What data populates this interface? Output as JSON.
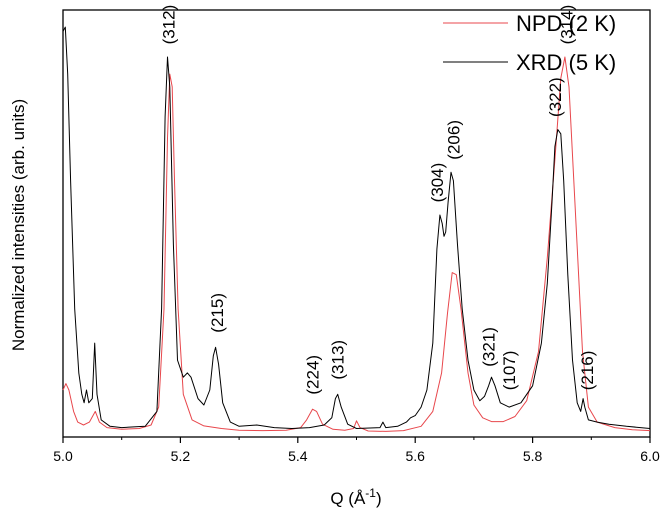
{
  "chart_data": {
    "type": "line",
    "xlabel": "Q (Å",
    "xlabel_sup": "-1",
    "xlabel_close": ")",
    "ylabel": "Normalized intensities (arb. units)",
    "xlim": [
      5.0,
      6.0
    ],
    "ylim": [
      0,
      1
    ],
    "x_ticks": [
      "5.0",
      "5.2",
      "5.4",
      "5.6",
      "5.8",
      "6.0"
    ],
    "x_tick_values": [
      5.0,
      5.2,
      5.4,
      5.6,
      5.8,
      6.0
    ],
    "x_minor_tick_values": [
      5.1,
      5.3,
      5.5,
      5.7,
      5.9
    ],
    "legend_position": "top-right",
    "series": [
      {
        "name": "NPD (2 K)",
        "color": "#e8474c",
        "points": [
          [
            5.0,
            0.11
          ],
          [
            5.005,
            0.125
          ],
          [
            5.01,
            0.11
          ],
          [
            5.018,
            0.06
          ],
          [
            5.025,
            0.035
          ],
          [
            5.035,
            0.028
          ],
          [
            5.045,
            0.035
          ],
          [
            5.055,
            0.06
          ],
          [
            5.062,
            0.035
          ],
          [
            5.075,
            0.022
          ],
          [
            5.1,
            0.018
          ],
          [
            5.13,
            0.02
          ],
          [
            5.15,
            0.028
          ],
          [
            5.163,
            0.07
          ],
          [
            5.172,
            0.3
          ],
          [
            5.178,
            0.7
          ],
          [
            5.182,
            0.85
          ],
          [
            5.186,
            0.82
          ],
          [
            5.19,
            0.6
          ],
          [
            5.196,
            0.3
          ],
          [
            5.205,
            0.1
          ],
          [
            5.22,
            0.04
          ],
          [
            5.24,
            0.026
          ],
          [
            5.27,
            0.02
          ],
          [
            5.3,
            0.016
          ],
          [
            5.34,
            0.015
          ],
          [
            5.38,
            0.016
          ],
          [
            5.405,
            0.022
          ],
          [
            5.415,
            0.04
          ],
          [
            5.425,
            0.065
          ],
          [
            5.432,
            0.06
          ],
          [
            5.442,
            0.03
          ],
          [
            5.46,
            0.018
          ],
          [
            5.48,
            0.016
          ],
          [
            5.495,
            0.02
          ],
          [
            5.5,
            0.038
          ],
          [
            5.506,
            0.022
          ],
          [
            5.52,
            0.014
          ],
          [
            5.55,
            0.013
          ],
          [
            5.58,
            0.015
          ],
          [
            5.61,
            0.025
          ],
          [
            5.63,
            0.06
          ],
          [
            5.645,
            0.15
          ],
          [
            5.655,
            0.29
          ],
          [
            5.663,
            0.385
          ],
          [
            5.67,
            0.38
          ],
          [
            5.678,
            0.3
          ],
          [
            5.69,
            0.15
          ],
          [
            5.7,
            0.075
          ],
          [
            5.715,
            0.045
          ],
          [
            5.73,
            0.036
          ],
          [
            5.75,
            0.036
          ],
          [
            5.77,
            0.048
          ],
          [
            5.79,
            0.085
          ],
          [
            5.81,
            0.2
          ],
          [
            5.825,
            0.42
          ],
          [
            5.838,
            0.65
          ],
          [
            5.848,
            0.84
          ],
          [
            5.855,
            0.89
          ],
          [
            5.862,
            0.82
          ],
          [
            5.872,
            0.55
          ],
          [
            5.885,
            0.2
          ],
          [
            5.895,
            0.07
          ],
          [
            5.91,
            0.035
          ],
          [
            5.94,
            0.022
          ],
          [
            5.97,
            0.017
          ],
          [
            6.0,
            0.015
          ]
        ]
      },
      {
        "name": "XRD (5 K)",
        "color": "#000000",
        "points": [
          [
            5.0,
            0.95
          ],
          [
            5.004,
            0.96
          ],
          [
            5.008,
            0.85
          ],
          [
            5.013,
            0.6
          ],
          [
            5.02,
            0.3
          ],
          [
            5.027,
            0.15
          ],
          [
            5.032,
            0.1
          ],
          [
            5.036,
            0.08
          ],
          [
            5.04,
            0.11
          ],
          [
            5.044,
            0.08
          ],
          [
            5.05,
            0.09
          ],
          [
            5.054,
            0.22
          ],
          [
            5.058,
            0.1
          ],
          [
            5.065,
            0.04
          ],
          [
            5.08,
            0.025
          ],
          [
            5.1,
            0.022
          ],
          [
            5.14,
            0.025
          ],
          [
            5.16,
            0.06
          ],
          [
            5.168,
            0.3
          ],
          [
            5.174,
            0.75
          ],
          [
            5.178,
            0.89
          ],
          [
            5.182,
            0.82
          ],
          [
            5.188,
            0.45
          ],
          [
            5.195,
            0.18
          ],
          [
            5.205,
            0.14
          ],
          [
            5.212,
            0.15
          ],
          [
            5.218,
            0.14
          ],
          [
            5.23,
            0.09
          ],
          [
            5.24,
            0.075
          ],
          [
            5.25,
            0.11
          ],
          [
            5.256,
            0.19
          ],
          [
            5.26,
            0.21
          ],
          [
            5.265,
            0.17
          ],
          [
            5.272,
            0.08
          ],
          [
            5.285,
            0.035
          ],
          [
            5.3,
            0.025
          ],
          [
            5.33,
            0.028
          ],
          [
            5.36,
            0.022
          ],
          [
            5.39,
            0.02
          ],
          [
            5.42,
            0.022
          ],
          [
            5.445,
            0.028
          ],
          [
            5.458,
            0.045
          ],
          [
            5.464,
            0.09
          ],
          [
            5.468,
            0.1
          ],
          [
            5.474,
            0.07
          ],
          [
            5.485,
            0.03
          ],
          [
            5.5,
            0.02
          ],
          [
            5.54,
            0.022
          ],
          [
            5.545,
            0.035
          ],
          [
            5.55,
            0.022
          ],
          [
            5.57,
            0.025
          ],
          [
            5.585,
            0.035
          ],
          [
            5.592,
            0.045
          ],
          [
            5.6,
            0.05
          ],
          [
            5.61,
            0.07
          ],
          [
            5.62,
            0.11
          ],
          [
            5.63,
            0.22
          ],
          [
            5.637,
            0.44
          ],
          [
            5.642,
            0.52
          ],
          [
            5.646,
            0.5
          ],
          [
            5.649,
            0.47
          ],
          [
            5.652,
            0.48
          ],
          [
            5.656,
            0.55
          ],
          [
            5.661,
            0.62
          ],
          [
            5.665,
            0.6
          ],
          [
            5.672,
            0.45
          ],
          [
            5.68,
            0.3
          ],
          [
            5.69,
            0.18
          ],
          [
            5.7,
            0.11
          ],
          [
            5.71,
            0.085
          ],
          [
            5.718,
            0.095
          ],
          [
            5.725,
            0.12
          ],
          [
            5.73,
            0.14
          ],
          [
            5.736,
            0.12
          ],
          [
            5.745,
            0.08
          ],
          [
            5.76,
            0.07
          ],
          [
            5.78,
            0.08
          ],
          [
            5.8,
            0.12
          ],
          [
            5.815,
            0.22
          ],
          [
            5.825,
            0.36
          ],
          [
            5.833,
            0.55
          ],
          [
            5.838,
            0.68
          ],
          [
            5.843,
            0.72
          ],
          [
            5.848,
            0.71
          ],
          [
            5.853,
            0.6
          ],
          [
            5.86,
            0.38
          ],
          [
            5.868,
            0.18
          ],
          [
            5.876,
            0.08
          ],
          [
            5.882,
            0.06
          ],
          [
            5.886,
            0.09
          ],
          [
            5.889,
            0.07
          ],
          [
            5.895,
            0.04
          ],
          [
            5.91,
            0.035
          ],
          [
            5.93,
            0.03
          ],
          [
            5.96,
            0.025
          ],
          [
            6.0,
            0.02
          ]
        ]
      }
    ],
    "annotations": [
      {
        "text": "(312)",
        "x": 5.18,
        "y": 0.91
      },
      {
        "text": "(215)",
        "x": 5.262,
        "y": 0.235
      },
      {
        "text": "(224)",
        "x": 5.425,
        "y": 0.09
      },
      {
        "text": "(313)",
        "x": 5.468,
        "y": 0.125
      },
      {
        "text": "(304)",
        "x": 5.637,
        "y": 0.54
      },
      {
        "text": "(206)",
        "x": 5.665,
        "y": 0.64
      },
      {
        "text": "(321)",
        "x": 5.725,
        "y": 0.155
      },
      {
        "text": "(107)",
        "x": 5.76,
        "y": 0.1
      },
      {
        "text": "(322)",
        "x": 5.838,
        "y": 0.74
      },
      {
        "text": "(314)",
        "x": 5.858,
        "y": 0.91
      },
      {
        "text": "(216)",
        "x": 5.893,
        "y": 0.1
      }
    ]
  }
}
